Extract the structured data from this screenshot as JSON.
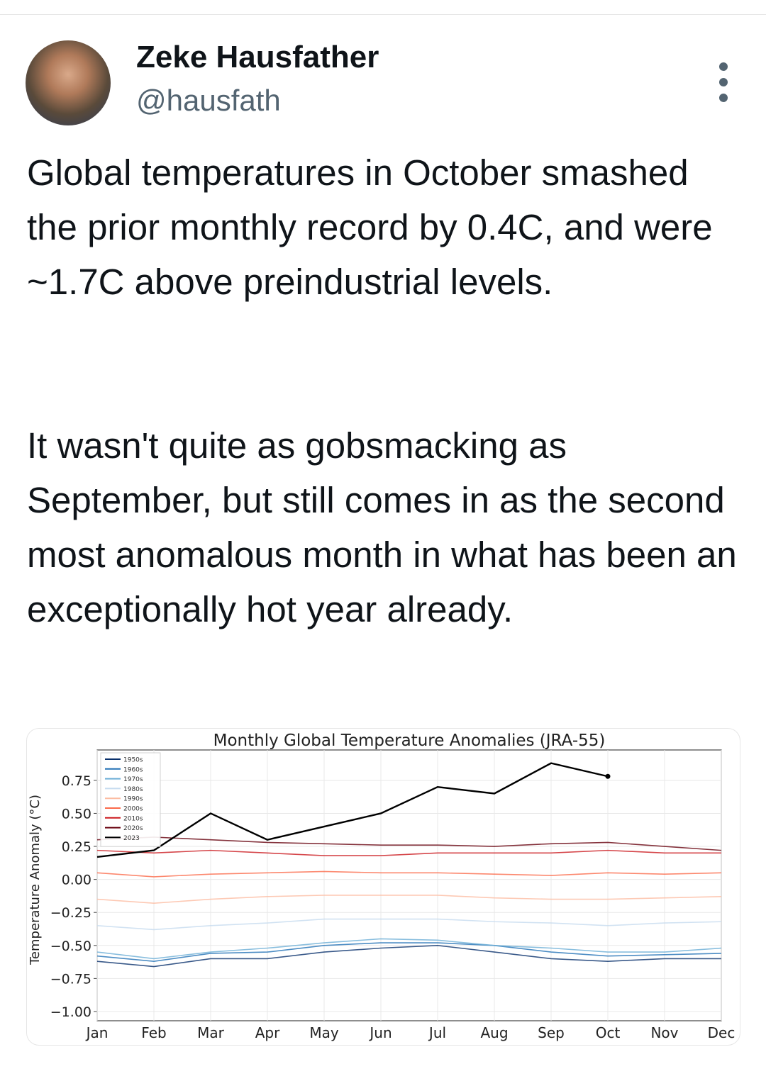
{
  "header": {
    "name": "Zeke Hausfather",
    "handle": "@hausfath"
  },
  "paragraphs": [
    "Global temperatures in October smashed the prior monthly record by 0.4C, and were ~1.7C above preindustrial levels.",
    "It wasn't quite as gobsmacking as September, but still comes in as the second most anomalous month in what has been an exceptionally hot year already."
  ],
  "chart_data": {
    "type": "line",
    "title": "Monthly Global Temperature Anomalies (JRA-55)",
    "y_label": "Temperature Anomaly (°C)",
    "categories": [
      "Jan",
      "Feb",
      "Mar",
      "Apr",
      "May",
      "Jun",
      "Jul",
      "Aug",
      "Sep",
      "Oct",
      "Nov",
      "Dec"
    ],
    "ylim": [
      -1.07,
      0.98
    ],
    "yticks": [
      {
        "value": 0.75,
        "label": "0.75"
      },
      {
        "value": 0.5,
        "label": "0.50"
      },
      {
        "value": 0.25,
        "label": "0.25"
      },
      {
        "value": 0,
        "label": "0.00"
      },
      {
        "value": -0.25,
        "label": "−0.25"
      },
      {
        "value": -0.5,
        "label": "−0.50"
      },
      {
        "value": -0.75,
        "label": "−0.75"
      },
      {
        "value": -1,
        "label": "−1.00"
      }
    ],
    "grid": true,
    "legend": "upper left",
    "series": [
      {
        "name": "1950s",
        "color": "#08306b",
        "values": [
          -0.62,
          -0.66,
          -0.6,
          -0.6,
          -0.55,
          -0.52,
          -0.5,
          -0.55,
          -0.6,
          -0.62,
          -0.6,
          -0.6
        ]
      },
      {
        "name": "1960s",
        "color": "#2171b5",
        "values": [
          -0.58,
          -0.62,
          -0.56,
          -0.55,
          -0.5,
          -0.48,
          -0.48,
          -0.5,
          -0.55,
          -0.58,
          -0.57,
          -0.56
        ]
      },
      {
        "name": "1970s",
        "color": "#6baed6",
        "values": [
          -0.55,
          -0.6,
          -0.55,
          -0.52,
          -0.48,
          -0.45,
          -0.46,
          -0.5,
          -0.52,
          -0.55,
          -0.55,
          -0.52
        ]
      },
      {
        "name": "1980s",
        "color": "#c6dbef",
        "values": [
          -0.35,
          -0.38,
          -0.35,
          -0.33,
          -0.3,
          -0.3,
          -0.3,
          -0.32,
          -0.33,
          -0.35,
          -0.33,
          -0.32
        ]
      },
      {
        "name": "1990s",
        "color": "#fcbba1",
        "values": [
          -0.15,
          -0.18,
          -0.15,
          -0.13,
          -0.12,
          -0.12,
          -0.12,
          -0.14,
          -0.15,
          -0.15,
          -0.14,
          -0.13
        ]
      },
      {
        "name": "2000s",
        "color": "#fb6a4a",
        "values": [
          0.05,
          0.02,
          0.04,
          0.05,
          0.06,
          0.05,
          0.05,
          0.04,
          0.03,
          0.05,
          0.04,
          0.05
        ]
      },
      {
        "name": "2010s",
        "color": "#cb181d",
        "values": [
          0.22,
          0.2,
          0.22,
          0.2,
          0.18,
          0.18,
          0.2,
          0.2,
          0.2,
          0.22,
          0.2,
          0.2
        ]
      },
      {
        "name": "2020s",
        "color": "#67000d",
        "values": [
          0.3,
          0.32,
          0.3,
          0.28,
          0.27,
          0.26,
          0.26,
          0.25,
          0.27,
          0.28,
          0.25,
          0.22
        ]
      },
      {
        "name": "2023",
        "color": "#000000",
        "values": [
          0.17,
          0.22,
          0.5,
          0.3,
          0.4,
          0.5,
          0.7,
          0.65,
          0.88,
          0.78,
          null,
          null
        ]
      }
    ]
  }
}
